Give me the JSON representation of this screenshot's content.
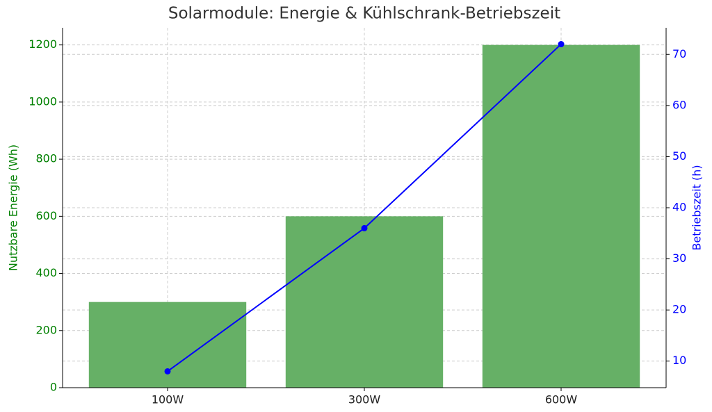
{
  "chart_data": {
    "type": "bar",
    "title": "Solarmodule: Energie & Kühlschrank-Betriebszeit",
    "ylabel": "Nutzbare Energie (Wh)",
    "y2label": "Betriebszeit (h)",
    "categories": [
      "100W",
      "300W",
      "600W"
    ],
    "series": [
      {
        "type": "bar",
        "color": "#66b066",
        "values": [
          300,
          600,
          1200
        ]
      },
      {
        "type": "line",
        "axis": "y2",
        "color": "#0000ff",
        "values": [
          8,
          36,
          72
        ]
      }
    ],
    "ylim": [
      0,
      1260
    ],
    "yticks": [
      0,
      200,
      400,
      600,
      800,
      1000,
      1200
    ],
    "y2lim": [
      4.8,
      75.2
    ],
    "y2ticks": [
      10,
      20,
      30,
      40,
      50,
      60,
      70
    ],
    "ylabel_color": "#008000",
    "y2label_color": "#0000ff",
    "grid": true
  }
}
